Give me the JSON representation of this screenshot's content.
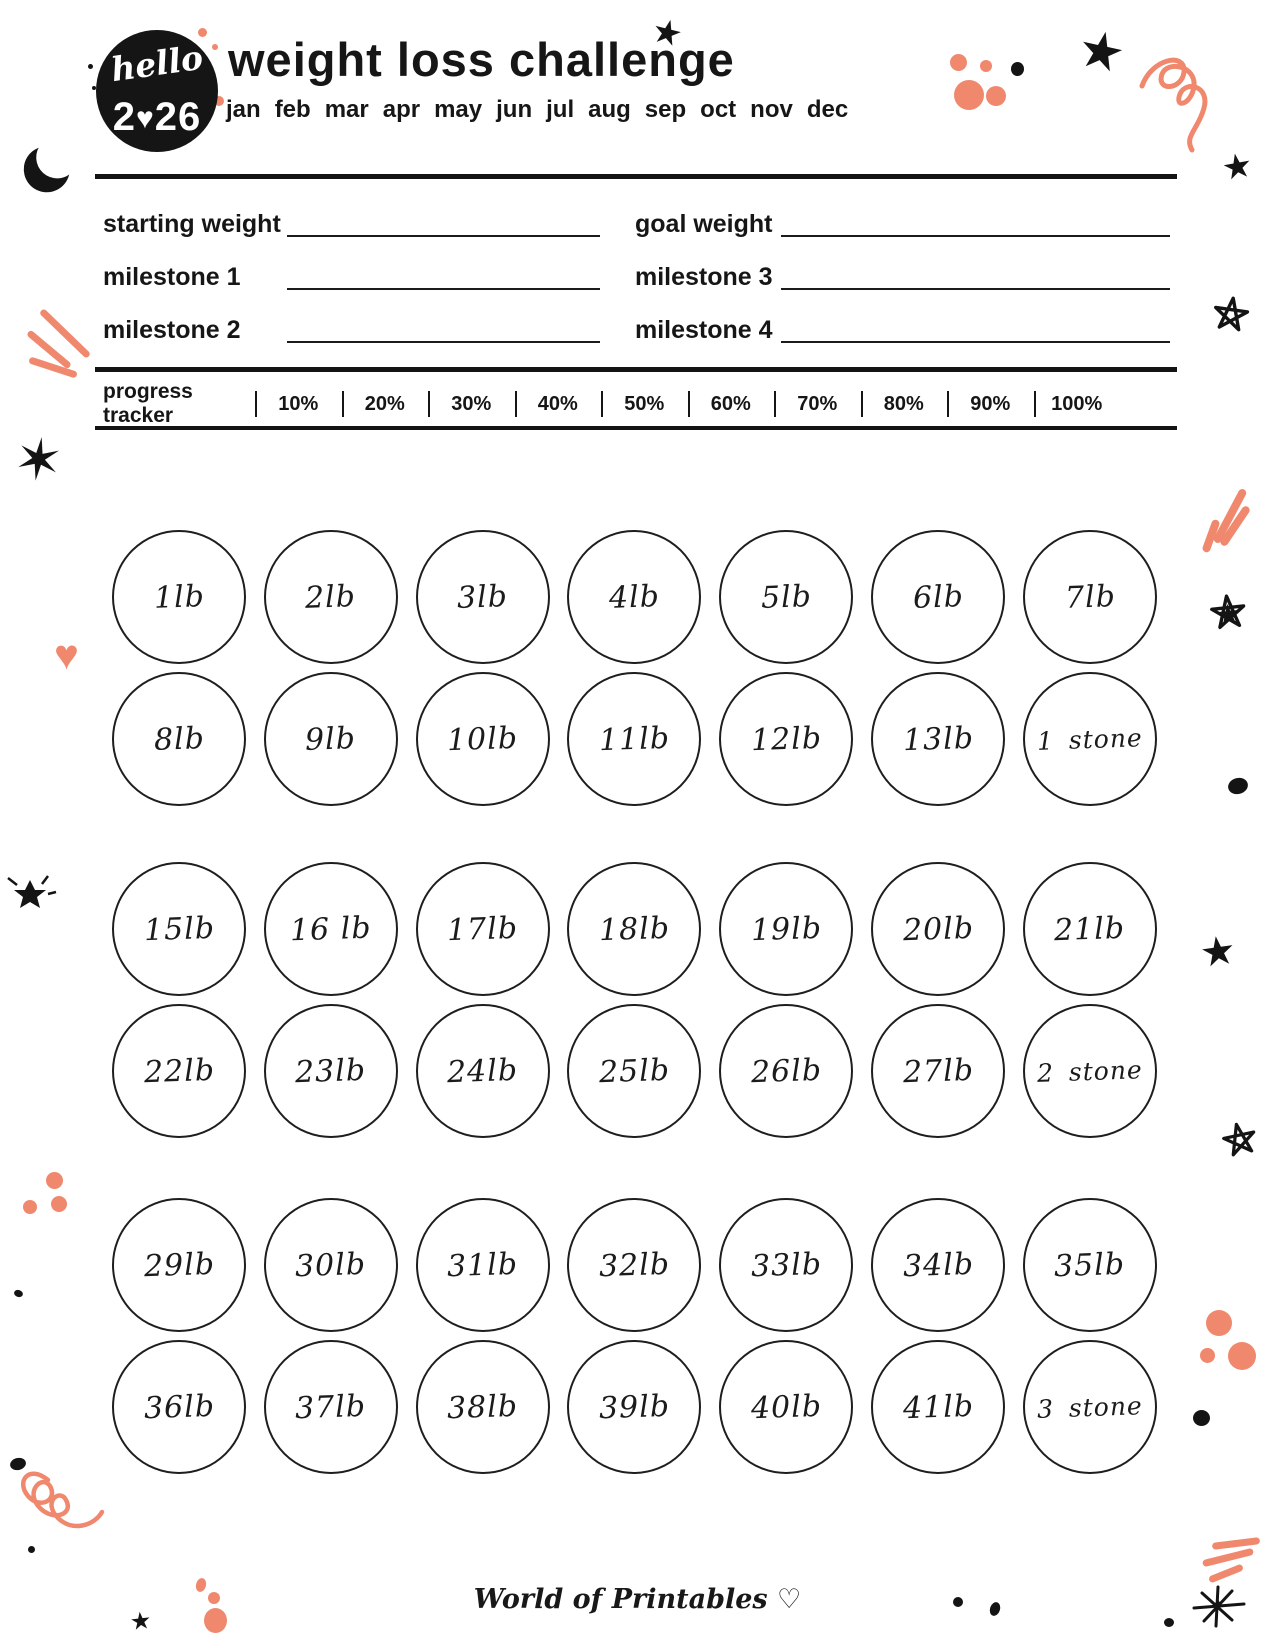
{
  "meta": {
    "accent_color": "#F0886E",
    "ink_color": "#141414"
  },
  "header": {
    "logo_line1": "hello",
    "logo_year_prefix": "2",
    "logo_year_suffix": "26",
    "title": "weight loss challenge",
    "months": [
      "jan",
      "feb",
      "mar",
      "apr",
      "may",
      "jun",
      "jul",
      "aug",
      "sep",
      "oct",
      "nov",
      "dec"
    ]
  },
  "fields": {
    "rows": [
      [
        "starting weight",
        "goal weight"
      ],
      [
        "milestone 1",
        "milestone 3"
      ],
      [
        "milestone 2",
        "milestone 4"
      ]
    ]
  },
  "tracker": {
    "label": "progress tracker",
    "steps": [
      "10%",
      "20%",
      "30%",
      "40%",
      "50%",
      "60%",
      "70%",
      "80%",
      "90%",
      "100%"
    ]
  },
  "badges": {
    "rows": [
      [
        "1lb",
        "2lb",
        "3lb",
        "4lb",
        "5lb",
        "6lb",
        "7lb"
      ],
      [
        "8lb",
        "9lb",
        "10lb",
        "11lb",
        "12lb",
        "13lb",
        "1 stone"
      ],
      [
        "15lb",
        "16 lb",
        "17lb",
        "18lb",
        "19lb",
        "20lb",
        "21lb"
      ],
      [
        "22lb",
        "23lb",
        "24lb",
        "25lb",
        "26lb",
        "27lb",
        "2 stone"
      ],
      [
        "29lb",
        "30lb",
        "31lb",
        "32lb",
        "33lb",
        "34lb",
        "35lb"
      ],
      [
        "36lb",
        "37lb",
        "38lb",
        "39lb",
        "40lb",
        "41lb",
        "3 stone"
      ]
    ]
  },
  "footer": {
    "credit": "World of Printables ♡"
  },
  "icons": {
    "star": "★",
    "six_point_star": "✶",
    "heart": "♥"
  }
}
